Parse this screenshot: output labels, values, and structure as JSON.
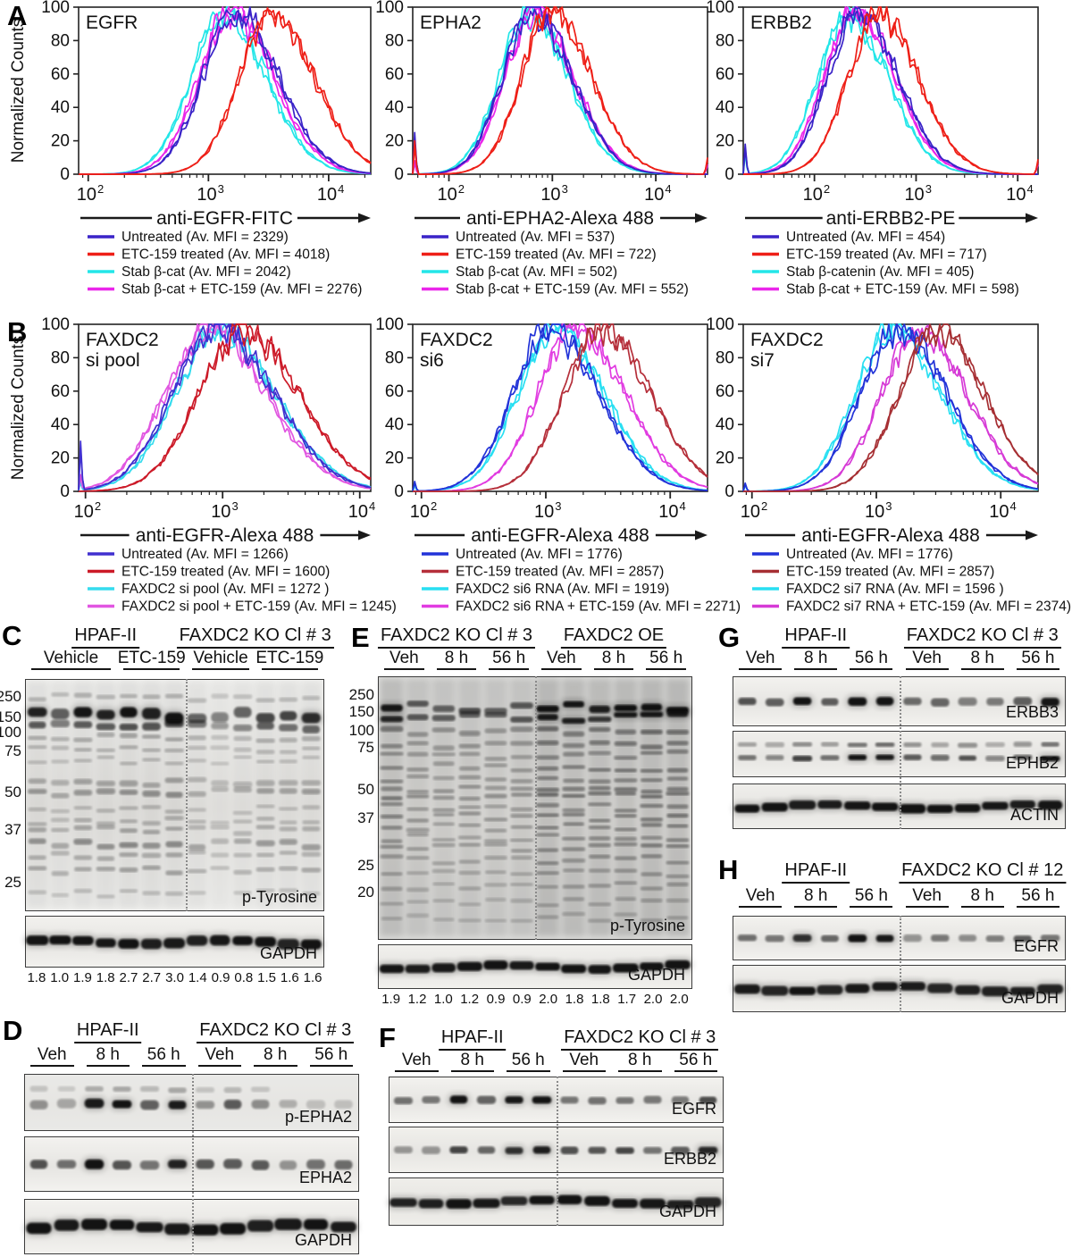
{
  "letters": {
    "a": "A",
    "b": "B",
    "c": "C",
    "d": "D",
    "e": "E",
    "f": "F",
    "g": "G",
    "h": "H"
  },
  "chart_data": [
    {
      "type": "line",
      "panel": "A",
      "title_lines": [
        "EGFR"
      ],
      "xlabel": "anti-EGFR-FITC",
      "ylabel": "Normalized Counts",
      "x_log_range": [
        1.92,
        4.35
      ],
      "x_tick_exponents": [
        2,
        3,
        4
      ],
      "y_ticks": [
        0,
        20,
        40,
        60,
        80,
        100
      ],
      "ylim": [
        0,
        100
      ],
      "sigma": 0.3,
      "left_spikes": [
        0,
        0,
        0,
        0
      ],
      "right_spikes": [
        0,
        0,
        0,
        0
      ],
      "series": [
        {
          "label": "Untreated (Av. MFI = 2329)",
          "color": "#3a23c8",
          "mfi": 2329,
          "mode": 1700
        },
        {
          "label": "ETC-159 treated (Av. MFI = 4018)",
          "color": "#ee1f17",
          "mfi": 4018,
          "mode": 3400
        },
        {
          "label": "Stab β-cat (Av. MFI = 2042)",
          "color": "#23e6e8",
          "mfi": 2042,
          "mode": 1350
        },
        {
          "label": "Stab β-cat + ETC-159 (Av. MFI = 2276)",
          "color": "#ea26ea",
          "mfi": 2276,
          "mode": 1550
        }
      ]
    },
    {
      "type": "line",
      "panel": "A",
      "title_lines": [
        "EPHA2"
      ],
      "xlabel": "anti-EPHA2-Alexa 488",
      "ylabel": "",
      "x_log_range": [
        1.65,
        4.5
      ],
      "x_tick_exponents": [
        2,
        3,
        4
      ],
      "y_ticks": [
        0,
        20,
        40,
        60,
        80,
        100
      ],
      "ylim": [
        0,
        100
      ],
      "sigma": 0.32,
      "left_spikes": [
        25,
        20,
        8,
        8
      ],
      "right_spikes": [
        0,
        10,
        0,
        6
      ],
      "series": [
        {
          "label": "Untreated (Av. MFI = 537)",
          "color": "#3a23c8",
          "mfi": 537,
          "mode": 650
        },
        {
          "label": "ETC-159 treated (Av. MFI = 722)",
          "color": "#ee1f17",
          "mfi": 722,
          "mode": 1000
        },
        {
          "label": "Stab β-cat (Av. MFI = 502)",
          "color": "#23e6e8",
          "mfi": 502,
          "mode": 600
        },
        {
          "label": "Stab β-cat + ETC-159 (Av. MFI = 552)",
          "color": "#ea26ea",
          "mfi": 552,
          "mode": 680
        }
      ]
    },
    {
      "type": "line",
      "panel": "A",
      "title_lines": [
        "ERBB2"
      ],
      "xlabel": "anti-ERBB2-PE",
      "ylabel": "",
      "x_log_range": [
        1.3,
        4.2
      ],
      "x_tick_exponents": [
        2,
        3,
        4
      ],
      "y_ticks": [
        0,
        20,
        40,
        60,
        80,
        100
      ],
      "ylim": [
        0,
        100
      ],
      "sigma": 0.33,
      "left_spikes": [
        18,
        0,
        14,
        0
      ],
      "right_spikes": [
        0,
        9,
        0,
        7
      ],
      "series": [
        {
          "label": "Untreated (Av. MFI = 454)",
          "color": "#3a23c8",
          "mfi": 454,
          "mode": 270
        },
        {
          "label": "ETC-159 treated (Av. MFI = 717)",
          "color": "#ee1f17",
          "mfi": 717,
          "mode": 430
        },
        {
          "label": "Stab β-catenin (Av. MFI = 405)",
          "color": "#23e6e8",
          "mfi": 405,
          "mode": 215
        },
        {
          "label": "Stab β-cat + ETC-159 (Av. MFI = 598)",
          "color": "#ea26ea",
          "mfi": 598,
          "mode": 250
        }
      ]
    },
    {
      "type": "line",
      "panel": "B",
      "title_lines": [
        "FAXDC2",
        "si pool"
      ],
      "xlabel": "anti-EGFR-Alexa 488",
      "ylabel": "Normalized Counts",
      "x_log_range": [
        1.95,
        4.08
      ],
      "x_tick_exponents": [
        2,
        3,
        4
      ],
      "y_ticks": [
        0,
        20,
        40,
        60,
        80,
        100
      ],
      "ylim": [
        0,
        100
      ],
      "sigma": 0.35,
      "left_spikes": [
        30,
        0,
        6,
        10
      ],
      "right_spikes": [
        0,
        0,
        0,
        0
      ],
      "series": [
        {
          "label": "Untreated (Av. MFI = 1266)",
          "color": "#4030cf",
          "mfi": 1266,
          "mode": 900
        },
        {
          "label": "ETC-159 treated  (Av. MFI = 1600)",
          "color": "#cc1a28",
          "mfi": 1600,
          "mode": 1400
        },
        {
          "label": "FAXDC2 si pool (Av. MFI = 1272 )",
          "color": "#35dcee",
          "mfi": 1272,
          "mode": 950
        },
        {
          "label": "FAXDC2 si pool + ETC-159 (Av. MFI = 1245)",
          "color": "#e156e1",
          "mfi": 1245,
          "mode": 800
        }
      ]
    },
    {
      "type": "line",
      "panel": "B",
      "title_lines": [
        "FAXDC2",
        "si6"
      ],
      "xlabel": "anti-EGFR-Alexa 488",
      "ylabel": "",
      "x_log_range": [
        1.93,
        4.3
      ],
      "x_tick_exponents": [
        2,
        3,
        4
      ],
      "y_ticks": [
        0,
        20,
        40,
        60,
        80,
        100
      ],
      "ylim": [
        0,
        100
      ],
      "sigma": 0.33,
      "left_spikes": [
        6,
        0,
        4,
        0
      ],
      "right_spikes": [
        0,
        0,
        0,
        0
      ],
      "series": [
        {
          "label": "Untreated (Av. MFI = 1776)",
          "color": "#2233d8",
          "mfi": 1776,
          "mode": 1100
        },
        {
          "label": "ETC-159 treated  (Av. MFI = 2857)",
          "color": "#b52f3a",
          "mfi": 2857,
          "mode": 2800
        },
        {
          "label": "FAXDC2 si6 RNA (Av. MFI = 1919)",
          "color": "#28dff2",
          "mfi": 1919,
          "mode": 1200
        },
        {
          "label": "FAXDC2 si6 RNA + ETC-159 (Av. MFI = 2271)",
          "color": "#e13ce1",
          "mfi": 2271,
          "mode": 1750
        }
      ]
    },
    {
      "type": "line",
      "panel": "B",
      "title_lines": [
        "FAXDC2",
        "si7"
      ],
      "xlabel": "anti-EGFR-Alexa 488",
      "ylabel": "",
      "x_log_range": [
        1.93,
        4.3
      ],
      "x_tick_exponents": [
        2,
        3,
        4
      ],
      "y_ticks": [
        0,
        20,
        40,
        60,
        80,
        100
      ],
      "ylim": [
        0,
        100
      ],
      "sigma": 0.33,
      "left_spikes": [
        5,
        0,
        4,
        0
      ],
      "right_spikes": [
        0,
        0,
        0,
        0
      ],
      "series": [
        {
          "label": "Untreated (Av. MFI = 1776)",
          "color": "#2233d8",
          "mfi": 1776,
          "mode": 1500
        },
        {
          "label": "ETC-159 treated  (Av. MFI = 2857)",
          "color": "#a62f33",
          "mfi": 2857,
          "mode": 3000
        },
        {
          "label": "FAXDC2 si7 RNA (Av. MFI = 1596 )",
          "color": "#28dff2",
          "mfi": 1596,
          "mode": 1350
        },
        {
          "label": "FAXDC2 si7 RNA + ETC-159 (Av. MFI = 2374)",
          "color": "#d63ad6",
          "mfi": 2374,
          "mode": 2200
        }
      ]
    }
  ],
  "blots": {
    "c": {
      "groups": [
        {
          "label": "HPAF-II",
          "lanes": 7
        },
        {
          "label": "FAXDC2 KO Cl # 3",
          "lanes": 6
        }
      ],
      "treatments": [
        {
          "label": "Vehicle",
          "lanes": 4
        },
        {
          "label": "ETC-159",
          "lanes": 3
        },
        {
          "label": "Vehicle",
          "lanes": 3
        },
        {
          "label": "ETC-159",
          "lanes": 3
        }
      ],
      "mw_markers": [
        {
          "label": "250",
          "y": 0.077
        },
        {
          "label": "150",
          "y": 0.165
        },
        {
          "label": "100",
          "y": 0.23
        },
        {
          "label": "75",
          "y": 0.31
        },
        {
          "label": "50",
          "y": 0.49
        },
        {
          "label": "37",
          "y": 0.65
        },
        {
          "label": "25",
          "y": 0.877
        }
      ],
      "rows": [
        {
          "label": "p-Tyrosine",
          "pattern": "smear_c",
          "intensities": [
            0.85,
            0.6,
            0.9,
            0.85,
            1.0,
            0.95,
            1.0,
            0.6,
            0.35,
            0.55,
            0.75,
            0.7,
            0.75
          ]
        },
        {
          "label": "GAPDH",
          "pattern": "loading",
          "intensities": [
            0.92,
            0.92,
            0.92,
            0.92,
            0.92,
            0.92,
            0.92,
            0.92,
            0.85,
            0.92,
            0.92,
            0.92,
            0.92
          ]
        }
      ],
      "quant": [
        "1.8",
        "1.0",
        "1.9",
        "1.8",
        "2.7",
        "2.7",
        "3.0",
        "1.4",
        "0.9",
        "0.8",
        "1.5",
        "1.6",
        "1.6"
      ]
    },
    "d": {
      "groups": [
        {
          "label": "HPAF-II",
          "lanes": 6
        },
        {
          "label": "FAXDC2 KO Cl # 3",
          "lanes": 6
        }
      ],
      "treatments": [
        {
          "label": "Veh",
          "lanes": 2
        },
        {
          "label": "8 h",
          "lanes": 2
        },
        {
          "label": "56 h",
          "lanes": 2
        },
        {
          "label": "Veh",
          "lanes": 2
        },
        {
          "label": "8 h",
          "lanes": 2
        },
        {
          "label": "56 h",
          "lanes": 2
        }
      ],
      "rows": [
        {
          "label": "p-EPHA2",
          "pattern": "single_upper",
          "intensities": [
            0.3,
            0.22,
            0.95,
            1.0,
            0.55,
            0.9,
            0.35,
            0.6,
            0.35,
            0.18,
            0.08,
            0.08
          ]
        },
        {
          "label": "EPHA2",
          "pattern": "single",
          "intensities": [
            0.65,
            0.5,
            0.95,
            0.6,
            0.5,
            0.95,
            0.6,
            0.55,
            0.65,
            0.35,
            0.5,
            0.55
          ]
        },
        {
          "label": "GAPDH",
          "pattern": "loading",
          "intensities": [
            0.95,
            0.95,
            0.95,
            0.95,
            0.95,
            0.95,
            0.95,
            0.95,
            0.95,
            0.95,
            0.95,
            0.95
          ]
        }
      ]
    },
    "e": {
      "groups": [
        {
          "label": "FAXDC2 KO Cl # 3",
          "lanes": 6
        },
        {
          "label": "FAXDC2 OE",
          "lanes": 6
        }
      ],
      "treatments": [
        {
          "label": "Veh",
          "lanes": 2
        },
        {
          "label": "8 h",
          "lanes": 2
        },
        {
          "label": "56 h",
          "lanes": 2
        },
        {
          "label": "Veh",
          "lanes": 2
        },
        {
          "label": "8 h",
          "lanes": 2
        },
        {
          "label": "56 h",
          "lanes": 2
        }
      ],
      "mw_markers": [
        {
          "label": "250",
          "y": 0.07
        },
        {
          "label": "150",
          "y": 0.135
        },
        {
          "label": "100",
          "y": 0.207
        },
        {
          "label": "75",
          "y": 0.27
        },
        {
          "label": "50",
          "y": 0.43
        },
        {
          "label": "37",
          "y": 0.54
        },
        {
          "label": "25",
          "y": 0.72
        },
        {
          "label": "20",
          "y": 0.82
        }
      ],
      "rows": [
        {
          "label": "p-Tyrosine",
          "pattern": "smear_e",
          "intensities": [
            0.85,
            0.6,
            0.55,
            0.6,
            0.55,
            0.6,
            1.0,
            0.9,
            0.9,
            0.95,
            1.0,
            1.0
          ]
        },
        {
          "label": "GAPDH",
          "pattern": "loading",
          "intensities": [
            0.95,
            0.95,
            0.95,
            0.95,
            0.95,
            0.95,
            0.95,
            0.95,
            0.95,
            0.95,
            0.95,
            0.95
          ]
        }
      ],
      "quant": [
        "1.9",
        "1.2",
        "1.0",
        "1.2",
        "0.9",
        "0.9",
        "2.0",
        "1.8",
        "1.8",
        "1.7",
        "2.0",
        "2.0"
      ]
    },
    "f": {
      "groups": [
        {
          "label": "HPAF-II",
          "lanes": 6
        },
        {
          "label": "FAXDC2 KO Cl # 3",
          "lanes": 6
        }
      ],
      "treatments": [
        {
          "label": "Veh",
          "lanes": 2
        },
        {
          "label": "8 h",
          "lanes": 2
        },
        {
          "label": "56 h",
          "lanes": 2
        },
        {
          "label": "Veh",
          "lanes": 2
        },
        {
          "label": "8 h",
          "lanes": 2
        },
        {
          "label": "56 h",
          "lanes": 2
        }
      ],
      "rows": [
        {
          "label": "EGFR",
          "pattern": "single",
          "intensities": [
            0.5,
            0.45,
            0.95,
            0.6,
            0.9,
            1.0,
            0.45,
            0.45,
            0.5,
            0.45,
            0.4,
            0.7
          ]
        },
        {
          "label": "ERBB2",
          "pattern": "single",
          "intensities": [
            0.3,
            0.33,
            0.75,
            0.5,
            0.85,
            0.95,
            0.6,
            0.6,
            0.65,
            0.5,
            0.55,
            0.8
          ]
        },
        {
          "label": "GAPDH",
          "pattern": "loading",
          "intensities": [
            0.9,
            0.9,
            0.9,
            0.9,
            0.9,
            0.9,
            0.9,
            0.9,
            0.9,
            0.9,
            0.9,
            0.9
          ]
        }
      ]
    },
    "g": {
      "groups": [
        {
          "label": "HPAF-II",
          "lanes": 6
        },
        {
          "label": "FAXDC2 KO Cl # 3",
          "lanes": 6
        }
      ],
      "treatments": [
        {
          "label": "Veh",
          "lanes": 2
        },
        {
          "label": "8 h",
          "lanes": 2
        },
        {
          "label": "56 h",
          "lanes": 2
        },
        {
          "label": "Veh",
          "lanes": 2
        },
        {
          "label": "8 h",
          "lanes": 2
        },
        {
          "label": "56 h",
          "lanes": 2
        }
      ],
      "rows": [
        {
          "label": "ERBB3",
          "pattern": "single",
          "intensities": [
            0.7,
            0.55,
            0.9,
            0.6,
            0.95,
            0.95,
            0.5,
            0.5,
            0.45,
            0.45,
            0.6,
            0.9
          ]
        },
        {
          "label": "EPHB2",
          "pattern": "doublet",
          "intensities": [
            0.5,
            0.4,
            0.7,
            0.5,
            0.95,
            0.95,
            0.6,
            0.5,
            0.6,
            0.4,
            0.55,
            1.0
          ]
        },
        {
          "label": "ACTIN",
          "pattern": "loading",
          "intensities": [
            0.97,
            0.97,
            0.97,
            0.97,
            0.97,
            0.97,
            0.97,
            0.97,
            0.97,
            0.97,
            0.97,
            0.97
          ]
        }
      ]
    },
    "h": {
      "groups": [
        {
          "label": "HPAF-II",
          "lanes": 6
        },
        {
          "label": "FAXDC2 KO Cl # 12",
          "lanes": 6
        }
      ],
      "treatments": [
        {
          "label": "Veh",
          "lanes": 2
        },
        {
          "label": "8 h",
          "lanes": 2
        },
        {
          "label": "56 h",
          "lanes": 2
        },
        {
          "label": "Veh",
          "lanes": 2
        },
        {
          "label": "8 h",
          "lanes": 2
        },
        {
          "label": "56 h",
          "lanes": 2
        }
      ],
      "rows": [
        {
          "label": "EGFR",
          "pattern": "single",
          "intensities": [
            0.5,
            0.5,
            0.8,
            0.6,
            0.95,
            0.85,
            0.3,
            0.45,
            0.35,
            0.45,
            0.55,
            0.5
          ]
        },
        {
          "label": "GAPDH",
          "pattern": "loading",
          "intensities": [
            0.92,
            0.92,
            0.92,
            0.92,
            0.92,
            0.92,
            0.92,
            0.92,
            0.92,
            0.92,
            0.92,
            0.92
          ]
        }
      ]
    }
  }
}
